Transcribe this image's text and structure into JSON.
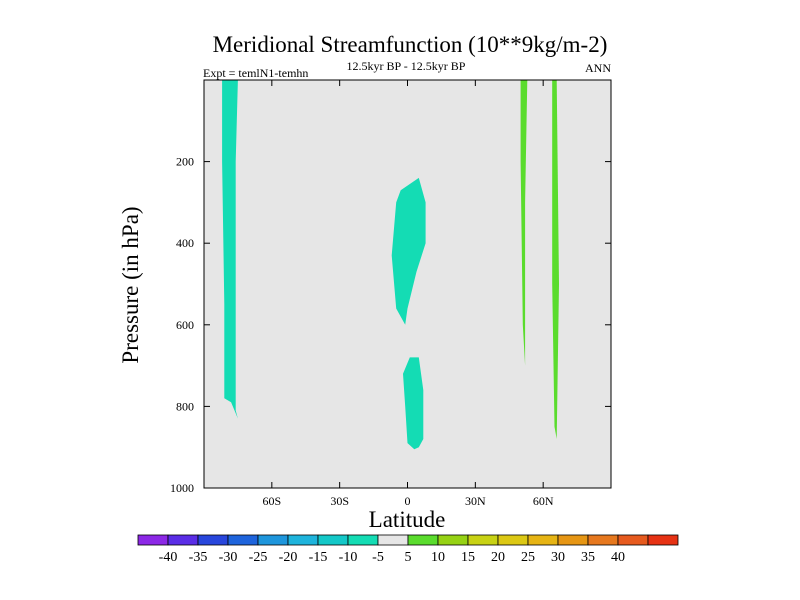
{
  "chart_data": {
    "type": "heatmap",
    "title": "Meridional Streamfunction (10**9kg/m-2)",
    "subtitle": "12.5kyr BP - 12.5kyr BP",
    "left_annotation": "Expt = temlN1-temhn",
    "right_annotation": "ANN",
    "xlabel": "Latitude",
    "ylabel": "Pressure (in hPa)",
    "xlim": [
      -90,
      90
    ],
    "ylim": [
      1000,
      0
    ],
    "x_ticks": [
      {
        "value": -60,
        "label": "60S"
      },
      {
        "value": -30,
        "label": "30S"
      },
      {
        "value": 0,
        "label": "0"
      },
      {
        "value": 30,
        "label": "30N"
      },
      {
        "value": 60,
        "label": "60N"
      }
    ],
    "y_ticks": [
      {
        "value": 200,
        "label": "200"
      },
      {
        "value": 400,
        "label": "400"
      },
      {
        "value": 600,
        "label": "600"
      },
      {
        "value": 800,
        "label": "800"
      },
      {
        "value": 1000,
        "label": "1000"
      }
    ],
    "background_color": "#e6e6e6",
    "regions": [
      {
        "name": "region-sh-polar",
        "color": "#14dcb4",
        "points": [
          [
            -82,
            0
          ],
          [
            -75,
            0
          ],
          [
            -76,
            200
          ],
          [
            -76,
            600
          ],
          [
            -76,
            810
          ],
          [
            -75,
            830
          ],
          [
            -78,
            790
          ],
          [
            -81,
            780
          ],
          [
            -81,
            550
          ],
          [
            -82,
            200
          ]
        ]
      },
      {
        "name": "region-eq-upper",
        "color": "#14dcb4",
        "points": [
          [
            -3,
            270
          ],
          [
            5,
            240
          ],
          [
            8,
            300
          ],
          [
            8,
            400
          ],
          [
            4,
            470
          ],
          [
            0,
            560
          ],
          [
            -1,
            600
          ],
          [
            -5,
            560
          ],
          [
            -7,
            430
          ],
          [
            -5,
            300
          ]
        ]
      },
      {
        "name": "region-eq-lower",
        "color": "#14dcb4",
        "points": [
          [
            1,
            680
          ],
          [
            5,
            680
          ],
          [
            7,
            760
          ],
          [
            7,
            880
          ],
          [
            5,
            900
          ],
          [
            3,
            905
          ],
          [
            0,
            890
          ],
          [
            -1,
            800
          ],
          [
            -2,
            720
          ]
        ]
      },
      {
        "name": "region-nh-midlat",
        "color": "#5adc2d",
        "points": [
          [
            50,
            0
          ],
          [
            53,
            0
          ],
          [
            52,
            300
          ],
          [
            52,
            600
          ],
          [
            52,
            700
          ],
          [
            51,
            600
          ],
          [
            50,
            200
          ]
        ]
      },
      {
        "name": "region-nh-highlat",
        "color": "#5adc2d",
        "points": [
          [
            64,
            0
          ],
          [
            66,
            0
          ],
          [
            67,
            500
          ],
          [
            66,
            880
          ],
          [
            65,
            850
          ],
          [
            64,
            500
          ]
        ]
      }
    ],
    "colorbar": {
      "colors": [
        "#8c28e6",
        "#5a2de6",
        "#2846dc",
        "#1e64dc",
        "#1e96dc",
        "#1eb4dc",
        "#14c8c8",
        "#14dcb4",
        "#e6e6e6",
        "#5adc2d",
        "#96d214",
        "#c8d214",
        "#dcc814",
        "#e6b414",
        "#e69614",
        "#e6781e",
        "#e65a1e",
        "#e63214"
      ],
      "labels": [
        "-40",
        "-35",
        "-30",
        "-25",
        "-20",
        "-15",
        "-10",
        "-5",
        "5",
        "10",
        "15",
        "20",
        "25",
        "30",
        "35",
        "40"
      ]
    }
  }
}
